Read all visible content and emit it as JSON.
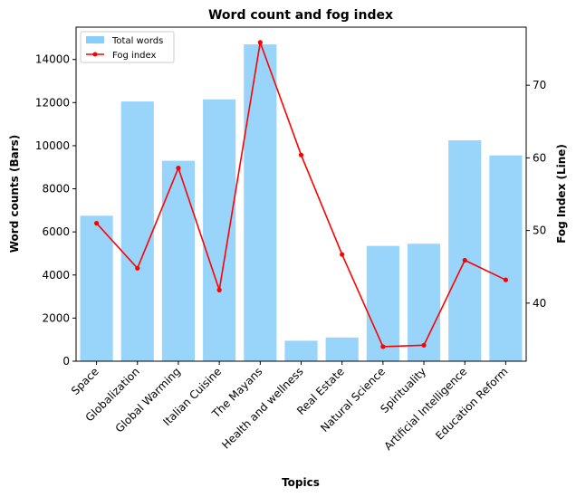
{
  "chart_data": {
    "type": "bar+line",
    "title": "Word count and fog index",
    "xlabel": "Topics",
    "ylabel_left": "Word counts (Bars)",
    "ylabel_right": "Fog Index (Line)",
    "categories": [
      "Space",
      "Globalization",
      "Global Warming",
      "Italian Cuisine",
      "The Mayans",
      "Health and wellness",
      "Real Estate",
      "Natural Science",
      "Spirituality",
      "Artificial Intelligence",
      "Education Reform"
    ],
    "series": [
      {
        "name": "Total words",
        "type": "bar",
        "axis": "left",
        "color": "#87cefa",
        "values": [
          6750,
          12050,
          9300,
          12150,
          14700,
          950,
          1100,
          5350,
          5450,
          10250,
          9550
        ]
      },
      {
        "name": "Fog index",
        "type": "line",
        "axis": "right",
        "color": "#ff0000",
        "marker": "circle",
        "values": [
          51.0,
          44.8,
          58.6,
          41.8,
          75.9,
          60.4,
          46.7,
          34.0,
          34.2,
          45.9,
          43.2
        ]
      }
    ],
    "ylim_left": [
      0,
      15500
    ],
    "yticks_left": [
      0,
      2000,
      4000,
      6000,
      8000,
      10000,
      12000,
      14000
    ],
    "ylim_right": [
      32,
      78
    ],
    "yticks_right": [
      40,
      50,
      60,
      70
    ],
    "legend_position": "top-left",
    "grid": false
  }
}
